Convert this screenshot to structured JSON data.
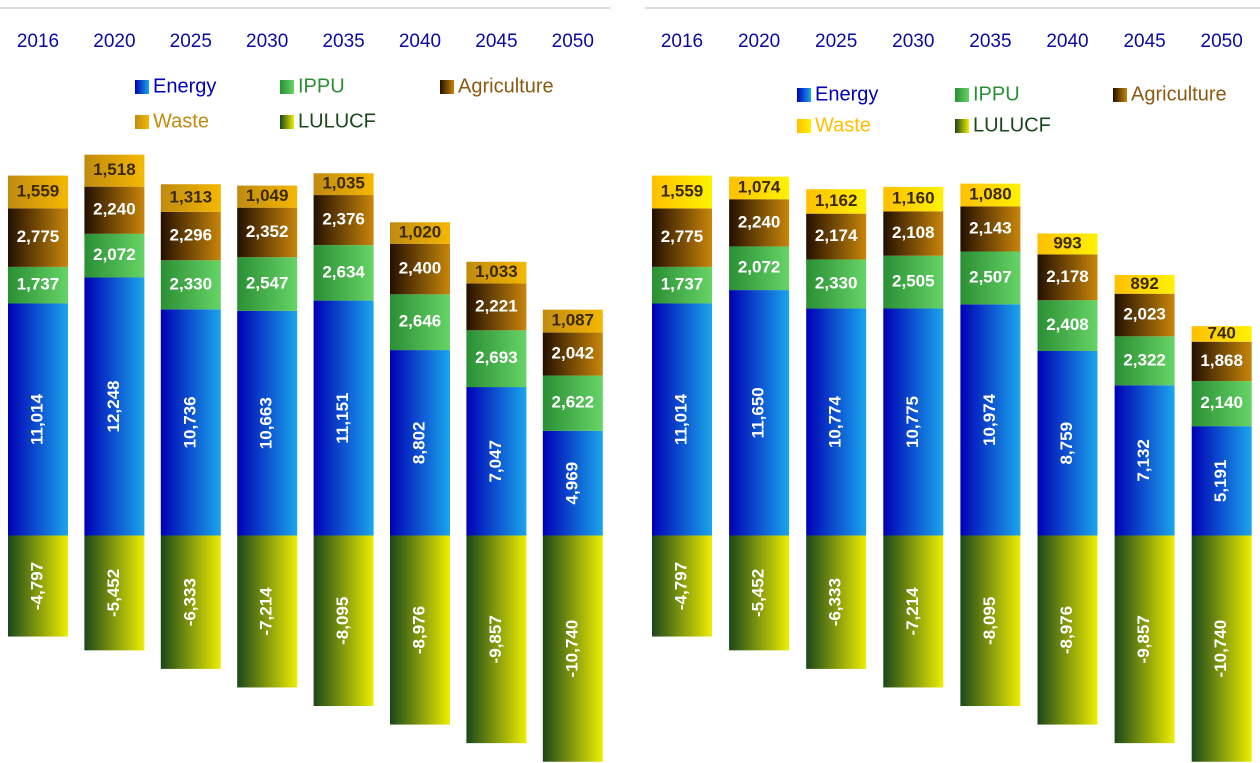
{
  "chart_data": [
    {
      "type": "bar",
      "stacked": true,
      "categories": [
        "2016",
        "2020",
        "2025",
        "2030",
        "2035",
        "2040",
        "2045",
        "2050"
      ],
      "ylim": [
        -10800,
        18300
      ],
      "series": [
        {
          "name": "Energy",
          "color": [
            "#0000b4",
            "#1aa6ec"
          ],
          "values": [
            11014,
            12248,
            10736,
            10663,
            11151,
            8802,
            7047,
            4969
          ],
          "value_labels": [
            "11,014",
            "12,248",
            "10,736",
            "10,663",
            "11,151",
            "8,802",
            "7,047",
            "4,969"
          ]
        },
        {
          "name": "IPPU",
          "color": [
            "#2a8f34",
            "#66d466"
          ],
          "values": [
            1737,
            2072,
            2330,
            2547,
            2634,
            2646,
            2693,
            2622
          ],
          "value_labels": [
            "1,737",
            "2,072",
            "2,330",
            "2,547",
            "2,634",
            "2,646",
            "2,693",
            "2,622"
          ]
        },
        {
          "name": "Agriculture",
          "color": [
            "#241000",
            "#c8860a"
          ],
          "values": [
            2775,
            2240,
            2296,
            2352,
            2376,
            2400,
            2221,
            2042
          ],
          "value_labels": [
            "2,775",
            "2,240",
            "2,296",
            "2,352",
            "2,376",
            "2,400",
            "2,221",
            "2,042"
          ]
        },
        {
          "name": "Waste",
          "color": [
            "#c08a10",
            "#f5b800"
          ],
          "values": [
            1559,
            1518,
            1313,
            1049,
            1035,
            1020,
            1033,
            1087
          ],
          "value_labels": [
            "1,559",
            "1,518",
            "1,313",
            "1,049",
            "1,035",
            "1,020",
            "1,033",
            "1,087"
          ]
        },
        {
          "name": "LULUCF",
          "color": [
            "#1b471b",
            "#eeee00"
          ],
          "values": [
            -4797,
            -5452,
            -6333,
            -7214,
            -8095,
            -8976,
            -9857,
            -10740
          ],
          "value_labels": [
            "-4,797",
            "-5,452",
            "-6,333",
            "-7,214",
            "-8,095",
            "-8,976",
            "-9,857",
            "-10,740"
          ]
        }
      ]
    },
    {
      "type": "bar",
      "stacked": true,
      "categories": [
        "2016",
        "2020",
        "2025",
        "2030",
        "2035",
        "2040",
        "2045",
        "2050"
      ],
      "ylim": [
        -10800,
        18300
      ],
      "series": [
        {
          "name": "Energy",
          "color": [
            "#0000b4",
            "#1aa6ec"
          ],
          "values": [
            11014,
            11650,
            10774,
            10775,
            10974,
            8759,
            7132,
            5191
          ],
          "value_labels": [
            "11,014",
            "11,650",
            "10,774",
            "10,775",
            "10,974",
            "8,759",
            "7,132",
            "5,191"
          ]
        },
        {
          "name": "IPPU",
          "color": [
            "#2a8f34",
            "#66d466"
          ],
          "values": [
            1737,
            2072,
            2330,
            2505,
            2507,
            2408,
            2322,
            2140
          ],
          "value_labels": [
            "1,737",
            "2,072",
            "2,330",
            "2,505",
            "2,507",
            "2,408",
            "2,322",
            "2,140"
          ]
        },
        {
          "name": "Agriculture",
          "color": [
            "#241000",
            "#c8860a"
          ],
          "values": [
            2775,
            2240,
            2174,
            2108,
            2143,
            2178,
            2023,
            1868
          ],
          "value_labels": [
            "2,775",
            "2,240",
            "2,174",
            "2,108",
            "2,143",
            "2,178",
            "2,023",
            "1,868"
          ]
        },
        {
          "name": "Waste",
          "color": [
            "#ffbf00",
            "#fff200"
          ],
          "values": [
            1559,
            1074,
            1162,
            1160,
            1080,
            993,
            892,
            740
          ],
          "value_labels": [
            "1,559",
            "1,074",
            "1,162",
            "1,160",
            "1,080",
            "993",
            "892",
            "740"
          ]
        },
        {
          "name": "LULUCF",
          "color": [
            "#1b471b",
            "#eeee00"
          ],
          "values": [
            -4797,
            -5452,
            -6333,
            -7214,
            -8095,
            -8976,
            -9857,
            -10740
          ],
          "value_labels": [
            "-4,797",
            "-5,452",
            "-6,333",
            "-7,214",
            "-8,095",
            "-8,976",
            "-9,857",
            "-10,740"
          ]
        }
      ]
    }
  ]
}
